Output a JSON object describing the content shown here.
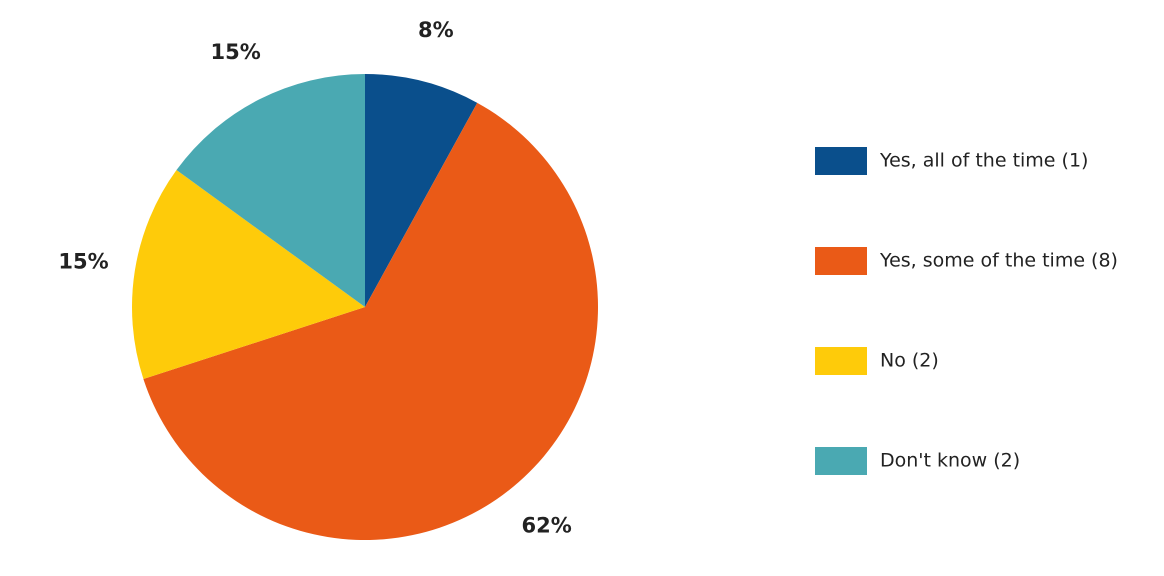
{
  "chart_data": {
    "type": "pie",
    "categories": [
      "Yes, all of the time (1)",
      "Yes, some of the time (8)",
      "No (2)",
      "Don't know (2)"
    ],
    "values": [
      8,
      62,
      15,
      15
    ],
    "value_labels": [
      "8%",
      "62%",
      "15%",
      "15%"
    ],
    "colors": [
      "#0a4f8c",
      "#ea5a17",
      "#fecb0a",
      "#4aa9b2"
    ],
    "legend": "right"
  }
}
